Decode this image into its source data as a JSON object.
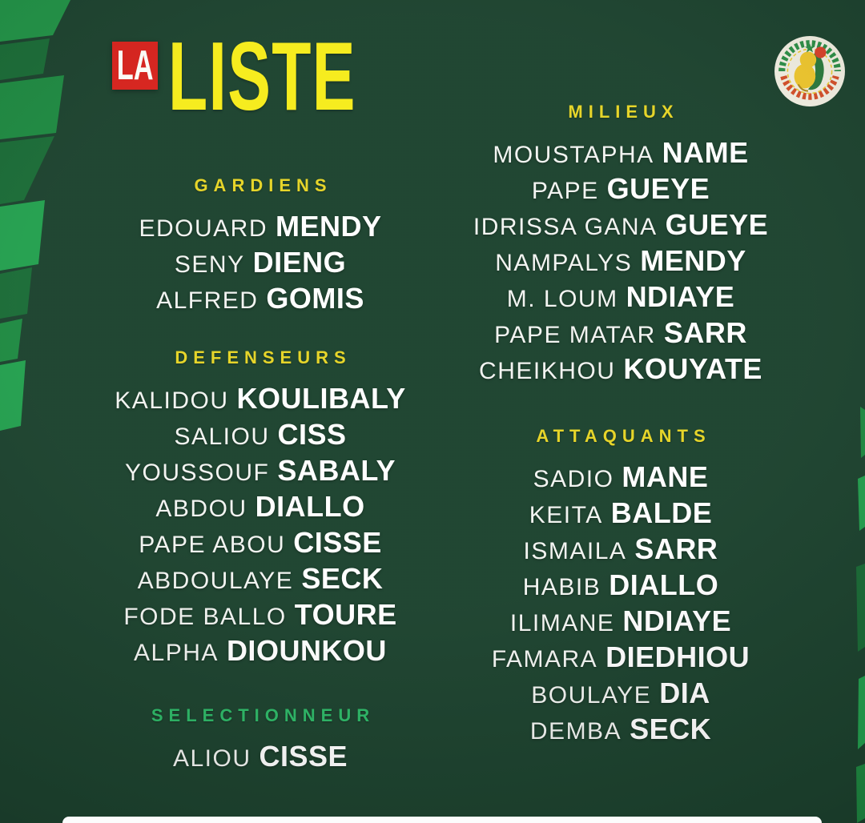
{
  "title": {
    "la_label": "LA",
    "liste_label": "LISTE"
  },
  "logo": {
    "name": "senegal-football-federation-badge"
  },
  "colors": {
    "background": "#1d432f",
    "pattern_green_bright": "#229347",
    "pattern_green_mid": "#1b6c37",
    "title_yellow": "#f6ec1b",
    "header_yellow": "#e6d426",
    "coach_green": "#2eb968",
    "badge_red": "#d7231d",
    "name_white": "#f2f4f1",
    "footer_white": "#fcfcfc"
  },
  "columns": [
    {
      "name": "left",
      "sections": [
        {
          "id": "gardiens",
          "label": "GARDIENS",
          "label_style": "yellow",
          "players": [
            {
              "first": "EDOUARD",
              "last": "MENDY"
            },
            {
              "first": "SENY",
              "last": "DIENG"
            },
            {
              "first": "ALFRED",
              "last": "GOMIS"
            }
          ]
        },
        {
          "id": "defenseurs",
          "label": "DEFENSEURS",
          "label_style": "yellow",
          "players": [
            {
              "first": "KALIDOU",
              "last": "KOULIBALY"
            },
            {
              "first": "SALIOU",
              "last": "CISS"
            },
            {
              "first": "YOUSSOUF",
              "last": "SABALY"
            },
            {
              "first": "ABDOU",
              "last": "DIALLO"
            },
            {
              "first": "PAPE ABOU",
              "last": "CISSE"
            },
            {
              "first": "ABDOULAYE",
              "last": "SECK"
            },
            {
              "first": "FODE BALLO",
              "last": "TOURE"
            },
            {
              "first": "ALPHA",
              "last": "DIOUNKOU"
            }
          ]
        },
        {
          "id": "selectionneur",
          "label": "SELECTIONNEUR",
          "label_style": "green",
          "players": [
            {
              "first": "ALIOU",
              "last": "CISSE"
            }
          ]
        }
      ]
    },
    {
      "name": "right",
      "sections": [
        {
          "id": "milieux",
          "label": "MILIEUX",
          "label_style": "yellow",
          "players": [
            {
              "first": "MOUSTAPHA",
              "last": "NAME"
            },
            {
              "first": "PAPE",
              "last": "GUEYE"
            },
            {
              "first": "IDRISSA GANA",
              "last": "GUEYE"
            },
            {
              "first": "NAMPALYS",
              "last": "MENDY"
            },
            {
              "first": "M. LOUM",
              "last": "NDIAYE"
            },
            {
              "first": "PAPE MATAR",
              "last": "SARR"
            },
            {
              "first": "CHEIKHOU",
              "last": "KOUYATE"
            }
          ]
        },
        {
          "id": "attaquants",
          "label": "ATTAQUANTS",
          "label_style": "yellow",
          "players": [
            {
              "first": "SADIO",
              "last": "MANE"
            },
            {
              "first": "KEITA",
              "last": "BALDE"
            },
            {
              "first": "ISMAILA",
              "last": "SARR"
            },
            {
              "first": "HABIB",
              "last": "DIALLO"
            },
            {
              "first": "ILIMANE",
              "last": "NDIAYE"
            },
            {
              "first": "FAMARA",
              "last": "DIEDHIOU"
            },
            {
              "first": "BOULAYE",
              "last": "DIA"
            },
            {
              "first": "DEMBA",
              "last": "SECK"
            }
          ]
        }
      ]
    }
  ]
}
